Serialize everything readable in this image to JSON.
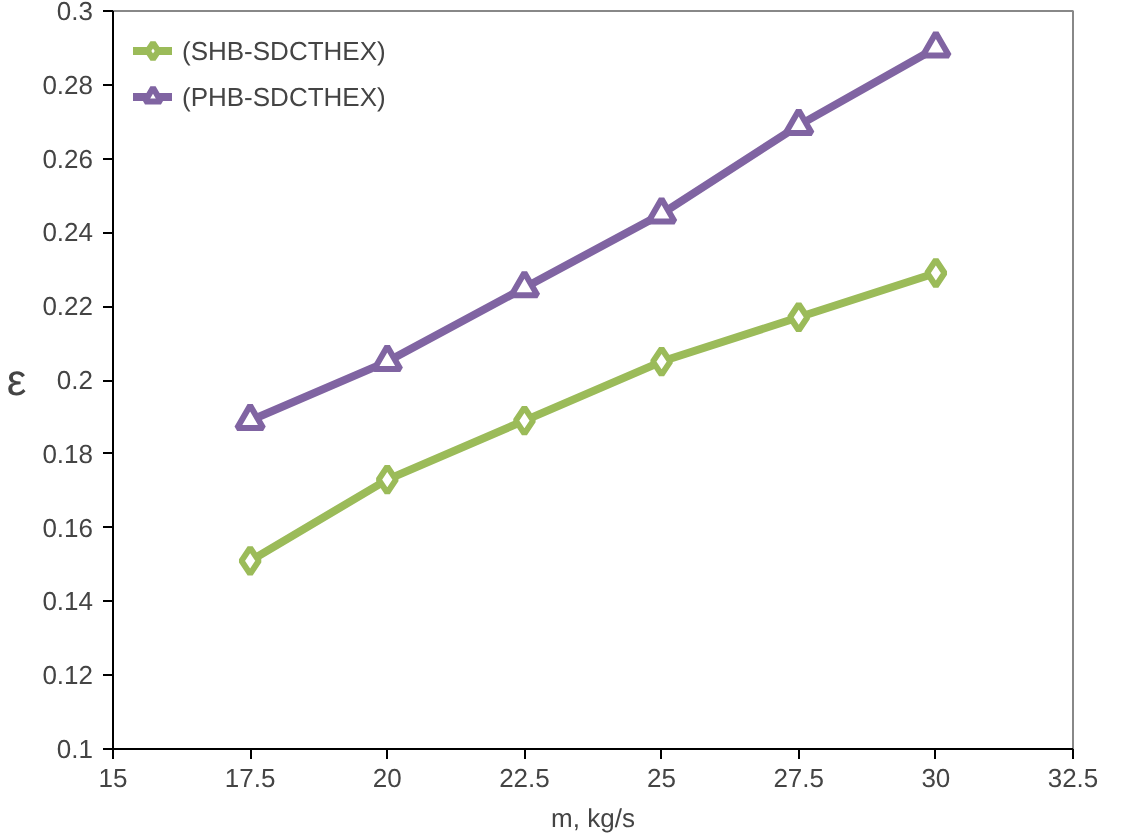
{
  "chart_data": {
    "type": "line",
    "xlabel": "m, kg/s",
    "ylabel": "ε",
    "x": [
      17.5,
      20,
      22.5,
      25,
      27.5,
      30
    ],
    "series": [
      {
        "name": "(SHB-SDCTHEX)",
        "color": "#9bbb59",
        "values": [
          0.151,
          0.173,
          0.189,
          0.205,
          0.217,
          0.229
        ],
        "marker": "diamond"
      },
      {
        "name": "(PHB-SDCTHEX)",
        "color": "#8064a2",
        "values": [
          0.189,
          0.205,
          0.225,
          0.245,
          0.269,
          0.29
        ],
        "marker": "triangle"
      }
    ],
    "xlim": [
      15,
      32.5
    ],
    "xticks": [
      15,
      17.5,
      20,
      22.5,
      25,
      27.5,
      30,
      32.5
    ],
    "ylim": [
      0.1,
      0.3
    ],
    "yticks": [
      0.1,
      0.12,
      0.14,
      0.16,
      0.18,
      0.2,
      0.22,
      0.24,
      0.26,
      0.28,
      0.3
    ],
    "grid": false,
    "legend": "top left",
    "line_style": "solid"
  }
}
